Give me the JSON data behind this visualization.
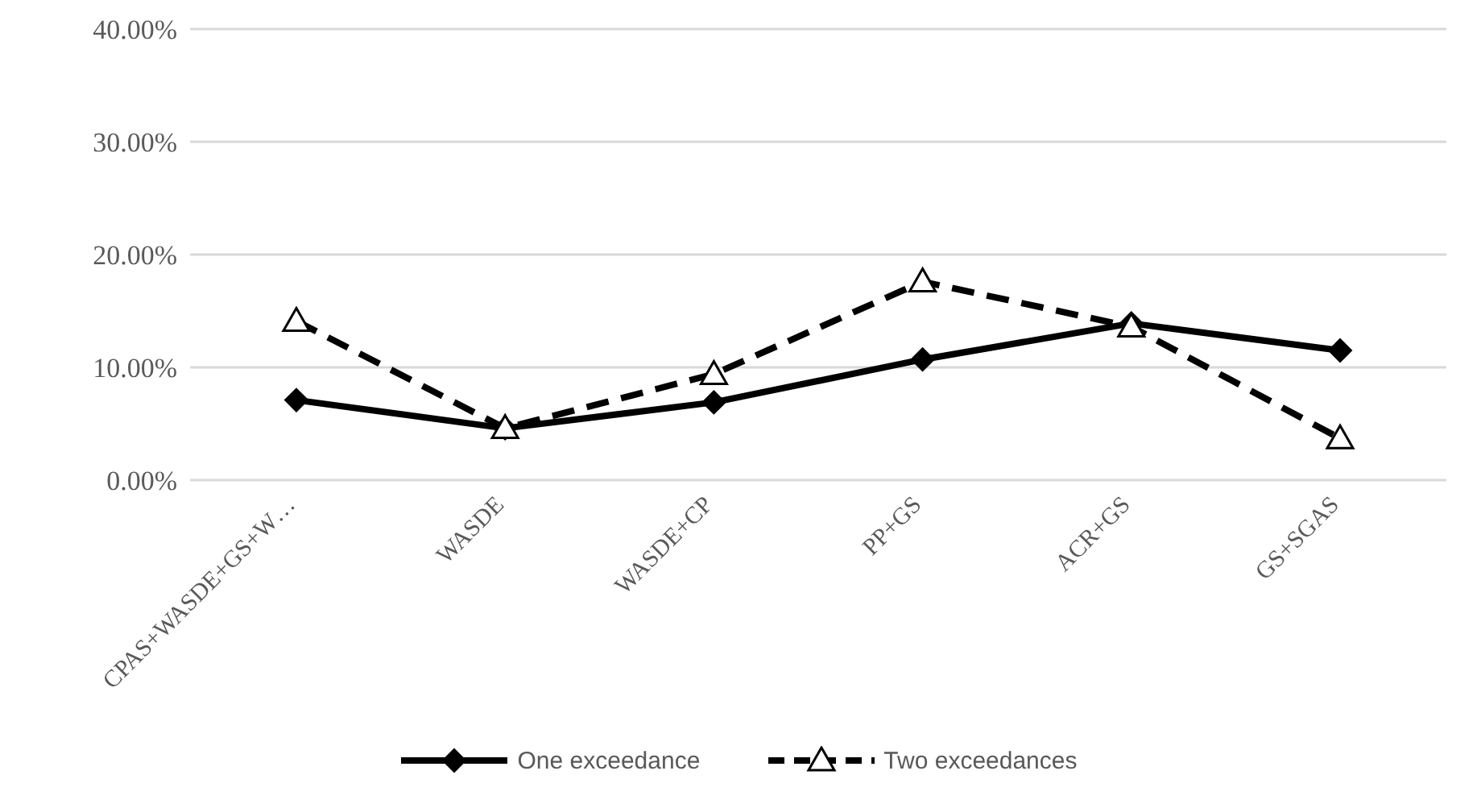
{
  "chart_data": {
    "type": "line",
    "categories": [
      "CPAS+WASDE+GS+W…",
      "WASDE",
      "WASDE+CP",
      "PP+GS",
      "ACR+GS",
      "GS+SGAS"
    ],
    "series": [
      {
        "name": "One exceedance",
        "color": "#000000",
        "marker": "diamond",
        "line_style": "solid",
        "values": [
          7.1,
          4.6,
          6.9,
          10.7,
          13.9,
          11.5
        ]
      },
      {
        "name": "Two exceedances",
        "color": "#000000",
        "marker": "triangle",
        "line_style": "dashed",
        "values": [
          14.1,
          4.6,
          9.4,
          17.6,
          13.6,
          3.7
        ]
      }
    ],
    "ylim": [
      0,
      40
    ],
    "yticks": [
      {
        "value": 0,
        "label": "0.00%"
      },
      {
        "value": 10,
        "label": "10.00%"
      },
      {
        "value": 20,
        "label": "20.00%"
      },
      {
        "value": 30,
        "label": "30.00%"
      },
      {
        "value": 40,
        "label": "40.00%"
      }
    ],
    "grid": "y",
    "legend": "bottom"
  }
}
